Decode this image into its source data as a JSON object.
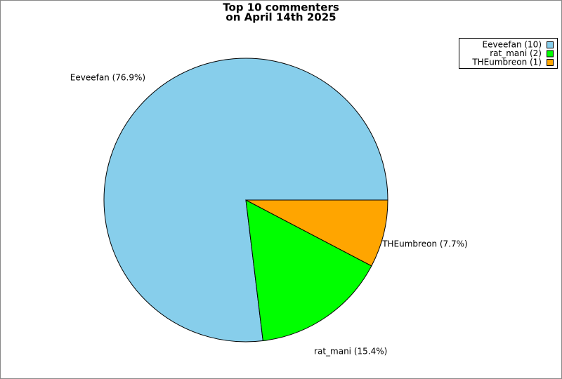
{
  "chart_data": {
    "type": "pie",
    "title": [
      "Top 10 commenters",
      "on April 14th 2025"
    ],
    "values": [
      10,
      2,
      1
    ],
    "colors": [
      "#87ceeb",
      "#00ff00",
      "#ffa500"
    ],
    "slice_labels": [
      "Eeveefan (76.9%)",
      "rat_mani (15.4%)",
      "THEumbreon (7.7%)"
    ],
    "legend_labels": [
      "Eeveefan (10)",
      "rat_mani (2)",
      "THEumbreon (1)"
    ]
  }
}
